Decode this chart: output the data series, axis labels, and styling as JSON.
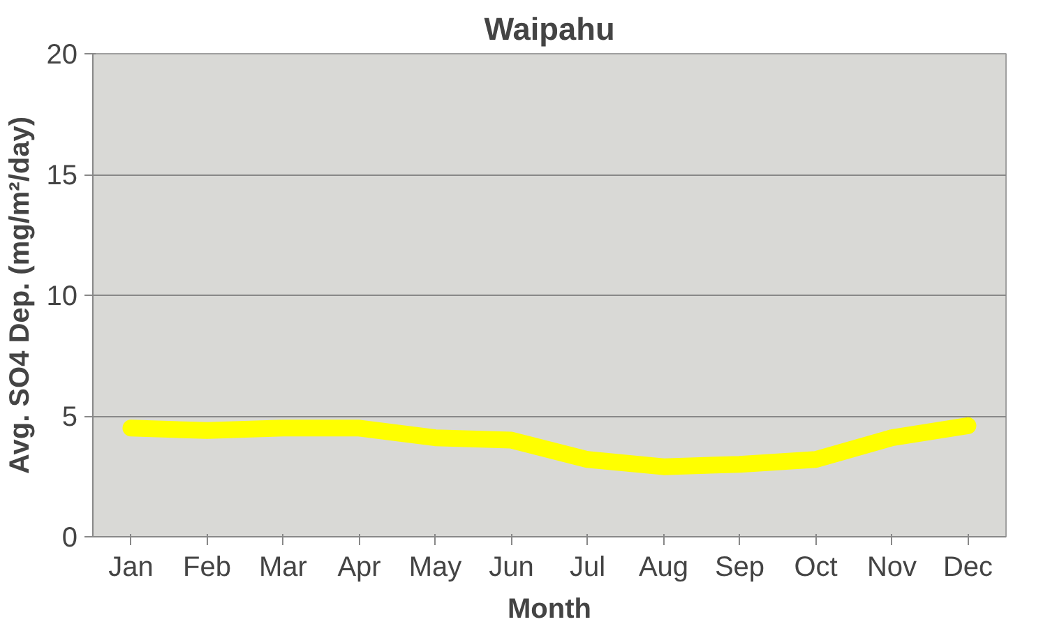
{
  "chart_data": {
    "type": "line",
    "title": "Waipahu",
    "xlabel": "Month",
    "ylabel": "Avg. SO4 Dep. (mg/m²/day)",
    "categories": [
      "Jan",
      "Feb",
      "Mar",
      "Apr",
      "May",
      "Jun",
      "Jul",
      "Aug",
      "Sep",
      "Oct",
      "Nov",
      "Dec"
    ],
    "series": [
      {
        "color": "#ffff00",
        "values": [
          4.5,
          4.4,
          4.5,
          4.5,
          4.1,
          4.0,
          3.2,
          2.9,
          3.0,
          3.2,
          4.1,
          4.6
        ]
      }
    ],
    "ylim": [
      0,
      20
    ],
    "yticks": [
      0,
      5,
      10,
      15,
      20
    ],
    "grid": "y",
    "line_style": "solid"
  }
}
